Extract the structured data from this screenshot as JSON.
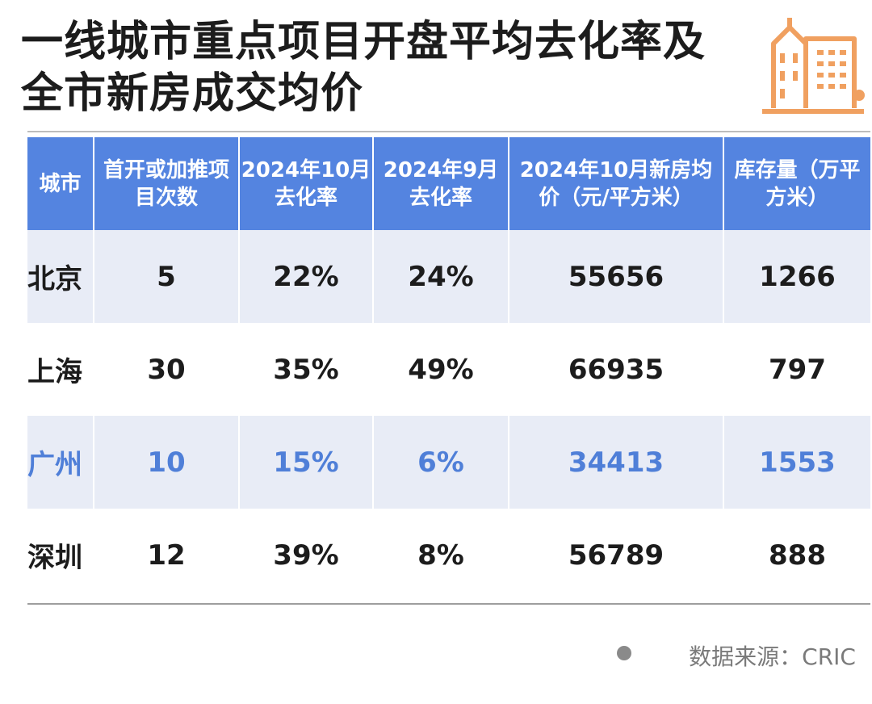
{
  "title": "一线城市重点项目开盘平均去化率及全市新房成交均价",
  "icon": "building-icon",
  "colors": {
    "header_bg": "#5484e0",
    "accent_text": "#4f7fd8",
    "shade_row": "#e8ecf6",
    "icon_orange": "#f0a060"
  },
  "source": "数据来源：CRIC",
  "chart_data": {
    "type": "table",
    "title": "一线城市重点项目开盘平均去化率及全市新房成交均价",
    "columns": [
      "城市",
      "首开或加推项目次数",
      "2024年10月去化率",
      "2024年9月去化率",
      "2024年10月新房均价（元/平方米）",
      "库存量（万平方米）"
    ],
    "rows": [
      [
        "北京",
        "5",
        "22%",
        "24%",
        "55656",
        "1266"
      ],
      [
        "上海",
        "30",
        "35%",
        "49%",
        "66935",
        "797"
      ],
      [
        "广州",
        "10",
        "15%",
        "6%",
        "34413",
        "1553"
      ],
      [
        "深圳",
        "12",
        "39%",
        "8%",
        "56789",
        "888"
      ]
    ]
  }
}
